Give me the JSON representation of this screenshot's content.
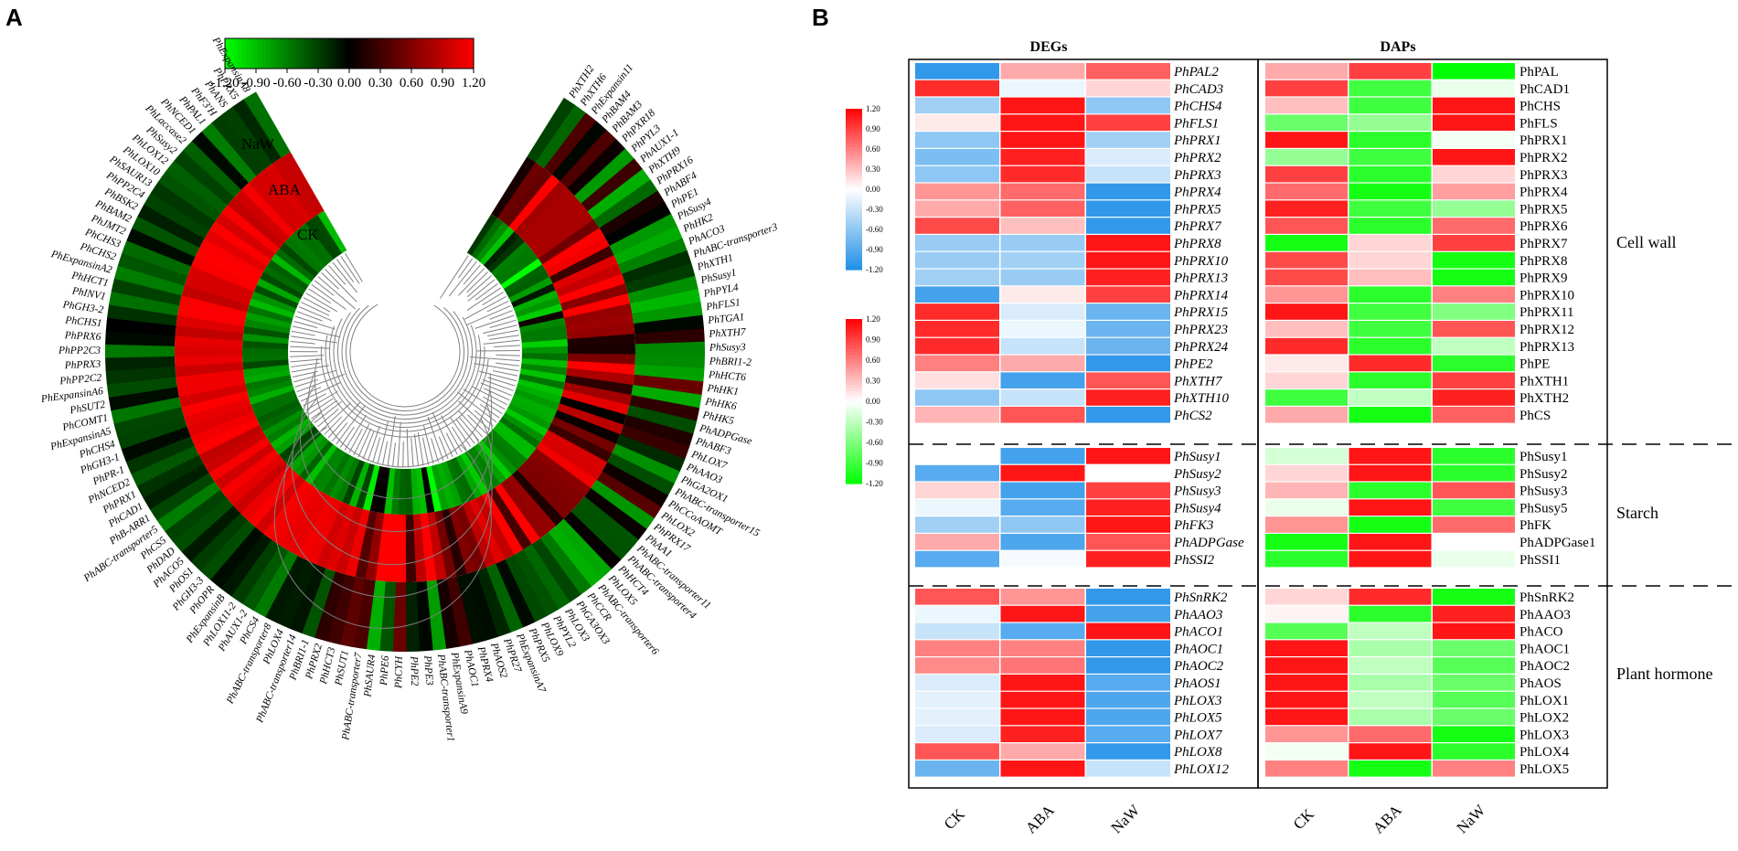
{
  "panels": {
    "a_label": "A",
    "b_label": "B"
  },
  "colors": {
    "red": "#ff0000",
    "black": "#000000",
    "green": "#00ff00",
    "blue": "#1f8fe8",
    "white": "#ffffff"
  },
  "chart_data": [
    {
      "type": "heatmap",
      "panel": "A",
      "subtype": "circular",
      "rings": [
        "CK",
        "ABA",
        "NaW"
      ],
      "colorbar": {
        "ticks": [
          "-1.20",
          "-0.90",
          "-0.60",
          "-0.30",
          "0.00",
          "0.30",
          "0.60",
          "0.90",
          "1.20"
        ],
        "range": [
          -1.2,
          1.2
        ]
      },
      "genes_left": [
        "PhExpansinA8",
        "PhPRX5",
        "PhANS",
        "PhF3'H",
        "PhPAL1",
        "PhNCED1",
        "PhLaccase2",
        "PhSusy2",
        "PhLOX12",
        "PhLOX10",
        "PhSAUR13",
        "PhPP2C4",
        "PhBSK2",
        "PhBAM2",
        "PhJMT2",
        "PhCHS3",
        "PhCHS2",
        "PhExpansinA2",
        "PhHCT1",
        "PhINV1",
        "PhGH3-2",
        "PhCHS1",
        "PhPRX6",
        "PhPP2C3",
        "PhPRX3",
        "PhPP2C2",
        "PhExpansinA6",
        "PhSUT2",
        "PhCOMT1",
        "PhExpansinA5",
        "PhCHS4",
        "PhGH3-1",
        "PhPR-1",
        "PhNCED2",
        "PhPRX1",
        "PhCAD1",
        "PhB-ARR1",
        "PhABC-transporter5",
        "PhCS5",
        "PhDAD",
        "PhACO5",
        "PhOS1",
        "PhGH3-3",
        "PhOPR",
        "PhExpansinB",
        "PhLOX11-2",
        "PhAUX1-2",
        "PhCS4",
        "PhABC-transporter8",
        "PhLOX4",
        "PhABC-transporter14",
        "PhBRI1-1",
        "PhPRX2",
        "PhHCT3",
        "PhSUT1"
      ],
      "genes_right": [
        "PhXTH2",
        "PhXTH6",
        "PhExpansin11",
        "PhBAM4",
        "PhBAM3",
        "PhPXR18",
        "PhPYL3",
        "PhAUX1-1",
        "PhXTH9",
        "PhPRX16",
        "PhABF4",
        "PhPE1",
        "PhSusy4",
        "PhHK2",
        "PhACO3",
        "PhABC-transporter3",
        "PhXTH1",
        "PhSusy1",
        "PhPYL4",
        "PhFLS1",
        "PhTGA1",
        "PhXTH7",
        "PhSusy3",
        "PhBRI1-2",
        "PhHCT6",
        "PhHK1",
        "PhHK6",
        "PhHK5",
        "PhADPGase",
        "PhABF3",
        "PhLOX7",
        "PhAAO3",
        "PhGA2OX1",
        "PhABC-transporter15",
        "PhCCoAOMT",
        "PhLOX2",
        "PhPRX17",
        "PhAA1",
        "PhABC-transporter11",
        "PhABC-transporter4",
        "PhHCT4",
        "PhLOX5",
        "PhABC-transporter6",
        "PhCCR",
        "PhGA3OX3",
        "PhLOX3",
        "PhPYL2",
        "PhLOX9",
        "PhPRX5",
        "PhExpansinA7",
        "PhPR27",
        "PhAOS2",
        "PhPRX4",
        "PhAOC1",
        "PhExpansinA9",
        "PhABC-transporter1",
        "PhPE3",
        "PhPE2",
        "PhCYH",
        "PhPE6",
        "PhSAUR4",
        "PhABC-transporter7"
      ]
    },
    {
      "type": "heatmap",
      "panel": "B",
      "columns": [
        "CK",
        "ABA",
        "NaW"
      ],
      "group_headers": {
        "degs": "DEGs",
        "daps": "DAPs"
      },
      "colorbar_degs": {
        "ticks": [
          "1.20",
          "0.90",
          "0.60",
          "0.30",
          "0.00",
          "-0.30",
          "-0.60",
          "-0.90",
          "-1.20"
        ],
        "range": [
          -1.2,
          1.2
        ]
      },
      "colorbar_daps": {
        "ticks": [
          "1.20",
          "0.90",
          "0.60",
          "0.30",
          "0.00",
          "-0.30",
          "-0.60",
          "-0.90",
          "-1.20"
        ],
        "range": [
          -1.2,
          1.2
        ]
      },
      "sections": [
        {
          "category": "Cell wall",
          "degs": [
            {
              "gene": "PhPAL2",
              "values": [
                -1.1,
                0.4,
                0.75
              ]
            },
            {
              "gene": "PhCAD3",
              "values": [
                1.0,
                -0.1,
                0.2
              ]
            },
            {
              "gene": "PhCHS4",
              "values": [
                -0.5,
                1.1,
                -0.6
              ]
            },
            {
              "gene": "PhFLS1",
              "values": [
                0.1,
                1.1,
                0.9
              ]
            },
            {
              "gene": "PhPRX1",
              "values": [
                -0.6,
                1.1,
                -0.5
              ]
            },
            {
              "gene": "PhPRX2",
              "values": [
                -0.7,
                1.05,
                -0.2
              ]
            },
            {
              "gene": "PhPRX3",
              "values": [
                -0.6,
                1.0,
                -0.3
              ]
            },
            {
              "gene": "PhPRX4",
              "values": [
                0.5,
                0.7,
                -1.1
              ]
            },
            {
              "gene": "PhPRX5",
              "values": [
                0.4,
                0.75,
                -1.1
              ]
            },
            {
              "gene": "PhPRX7",
              "values": [
                0.85,
                0.3,
                -1.1
              ]
            },
            {
              "gene": "PhPRX8",
              "values": [
                -0.55,
                -0.55,
                1.1
              ]
            },
            {
              "gene": "PhPRX10",
              "values": [
                -0.55,
                -0.5,
                1.1
              ]
            },
            {
              "gene": "PhPRX13",
              "values": [
                -0.5,
                -0.55,
                1.05
              ]
            },
            {
              "gene": "PhPRX14",
              "values": [
                -1.0,
                0.1,
                0.9
              ]
            },
            {
              "gene": "PhPRX15",
              "values": [
                1.0,
                -0.2,
                -0.8
              ]
            },
            {
              "gene": "PhPRX23",
              "values": [
                1.0,
                -0.1,
                -0.8
              ]
            },
            {
              "gene": "PhPRX24",
              "values": [
                1.0,
                -0.3,
                -0.8
              ]
            },
            {
              "gene": "PhPE2",
              "values": [
                0.6,
                0.4,
                -1.1
              ]
            },
            {
              "gene": "PhXTH7",
              "values": [
                0.15,
                -1.0,
                0.8
              ]
            },
            {
              "gene": "PhXTH10",
              "values": [
                -0.6,
                -0.3,
                1.05
              ]
            },
            {
              "gene": "PhCS2",
              "values": [
                0.35,
                0.8,
                -1.1
              ]
            }
          ],
          "daps": [
            {
              "protein": "PhPAL",
              "values": [
                0.4,
                0.9,
                -1.2
              ]
            },
            {
              "protein": "PhCAD1",
              "values": [
                0.9,
                -0.9,
                -0.1
              ]
            },
            {
              "protein": "PhCHS",
              "values": [
                0.3,
                -0.9,
                1.1
              ]
            },
            {
              "protein": "PhFLS",
              "values": [
                -0.7,
                -0.5,
                1.1
              ]
            },
            {
              "protein": "PhPRX1",
              "values": [
                1.1,
                -1.0,
                -0.05
              ]
            },
            {
              "protein": "PhPRX2",
              "values": [
                -0.5,
                -0.9,
                1.1
              ]
            },
            {
              "protein": "PhPRX3",
              "values": [
                0.9,
                -1.0,
                0.2
              ]
            },
            {
              "protein": "PhPRX4",
              "values": [
                0.7,
                -1.1,
                0.45
              ]
            },
            {
              "protein": "PhPRX5",
              "values": [
                1.05,
                -0.9,
                -0.5
              ]
            },
            {
              "protein": "PhPRX6",
              "values": [
                0.8,
                -1.0,
                0.7
              ]
            },
            {
              "protein": "PhPRX7",
              "values": [
                -1.1,
                0.2,
                0.9
              ]
            },
            {
              "protein": "PhPRX8",
              "values": [
                0.85,
                0.2,
                -1.1
              ]
            },
            {
              "protein": "PhPRX9",
              "values": [
                0.85,
                0.3,
                -1.1
              ]
            },
            {
              "protein": "PhPRX10",
              "values": [
                0.5,
                -1.0,
                0.6
              ]
            },
            {
              "protein": "PhPRX11",
              "values": [
                1.1,
                -0.9,
                -0.6
              ]
            },
            {
              "protein": "PhPRX12",
              "values": [
                0.3,
                -0.9,
                0.8
              ]
            },
            {
              "protein": "PhPRX13",
              "values": [
                1.0,
                -1.0,
                -0.3
              ]
            },
            {
              "protein": "PhPE",
              "values": [
                0.1,
                1.0,
                -1.0
              ]
            },
            {
              "protein": "PhXTH1",
              "values": [
                0.2,
                -1.0,
                0.9
              ]
            },
            {
              "protein": "PhXTH2",
              "values": [
                -0.9,
                -0.3,
                1.05
              ]
            },
            {
              "protein": "PhCS",
              "values": [
                0.4,
                -1.1,
                0.75
              ]
            }
          ]
        },
        {
          "category": "Starch",
          "degs": [
            {
              "gene": "PhSusy1",
              "values": [
                0.0,
                -1.0,
                1.1
              ]
            },
            {
              "gene": "PhSusy2",
              "values": [
                -0.9,
                1.1,
                0.0
              ]
            },
            {
              "gene": "PhSusy3",
              "values": [
                0.2,
                -1.0,
                0.9
              ]
            },
            {
              "gene": "PhSusy4",
              "values": [
                -0.1,
                -0.9,
                1.05
              ]
            },
            {
              "gene": "PhFK3",
              "values": [
                -0.5,
                -0.6,
                1.1
              ]
            },
            {
              "gene": "PhADPGase",
              "values": [
                0.4,
                -0.95,
                0.8
              ]
            },
            {
              "gene": "PhSSI2",
              "values": [
                -0.9,
                -0.05,
                1.05
              ]
            }
          ],
          "daps": [
            {
              "protein": "PhSusy1",
              "values": [
                -0.2,
                1.1,
                -1.0
              ]
            },
            {
              "protein": "PhSusy2",
              "values": [
                0.2,
                1.1,
                -1.0
              ]
            },
            {
              "protein": "PhSusy3",
              "values": [
                0.35,
                -1.0,
                0.8
              ]
            },
            {
              "protein": "PhSusy5",
              "values": [
                -0.1,
                1.1,
                -0.9
              ]
            },
            {
              "protein": "PhFK",
              "values": [
                0.5,
                -1.1,
                0.7
              ]
            },
            {
              "protein": "PhADPGase1",
              "values": [
                -1.1,
                1.1,
                0.0
              ]
            },
            {
              "protein": "PhSSI1",
              "values": [
                -1.0,
                1.1,
                -0.1
              ]
            }
          ]
        },
        {
          "category": "Plant hormone",
          "degs": [
            {
              "gene": "PhSnRK2",
              "values": [
                0.8,
                0.5,
                -1.1
              ]
            },
            {
              "gene": "PhAAO3",
              "values": [
                -0.1,
                1.1,
                -1.0
              ]
            },
            {
              "gene": "PhACO1",
              "values": [
                -0.3,
                -0.9,
                1.1
              ]
            },
            {
              "gene": "PhAOC1",
              "values": [
                0.6,
                0.6,
                -1.1
              ]
            },
            {
              "gene": "PhAOC2",
              "values": [
                0.55,
                0.65,
                -1.1
              ]
            },
            {
              "gene": "PhAOS1",
              "values": [
                -0.2,
                1.1,
                -0.9
              ]
            },
            {
              "gene": "PhLOX3",
              "values": [
                -0.15,
                1.1,
                -0.95
              ]
            },
            {
              "gene": "PhLOX5",
              "values": [
                -0.15,
                1.1,
                -0.95
              ]
            },
            {
              "gene": "PhLOX7",
              "values": [
                -0.2,
                1.05,
                -0.9
              ]
            },
            {
              "gene": "PhLOX8",
              "values": [
                0.8,
                0.4,
                -1.1
              ]
            },
            {
              "gene": "PhLOX12",
              "values": [
                -0.8,
                1.1,
                -0.3
              ]
            }
          ],
          "daps": [
            {
              "protein": "PhSnRK2",
              "values": [
                0.2,
                1.0,
                -1.1
              ]
            },
            {
              "protein": "PhAAO3",
              "values": [
                0.05,
                -1.0,
                1.05
              ]
            },
            {
              "protein": "PhACO",
              "values": [
                -0.8,
                -0.3,
                1.1
              ]
            },
            {
              "protein": "PhAOC1",
              "values": [
                1.1,
                -0.4,
                -0.7
              ]
            },
            {
              "protein": "PhAOC2",
              "values": [
                1.1,
                -0.3,
                -0.8
              ]
            },
            {
              "protein": "PhAOS",
              "values": [
                1.1,
                -0.4,
                -0.7
              ]
            },
            {
              "protein": "PhLOX1",
              "values": [
                1.1,
                -0.3,
                -0.8
              ]
            },
            {
              "protein": "PhLOX2",
              "values": [
                1.1,
                -0.4,
                -0.7
              ]
            },
            {
              "protein": "PhLOX3",
              "values": [
                0.5,
                0.7,
                -1.1
              ]
            },
            {
              "protein": "PhLOX4",
              "values": [
                -0.05,
                1.1,
                -1.0
              ]
            },
            {
              "protein": "PhLOX5",
              "values": [
                0.6,
                -1.1,
                0.6
              ]
            }
          ]
        }
      ]
    }
  ]
}
